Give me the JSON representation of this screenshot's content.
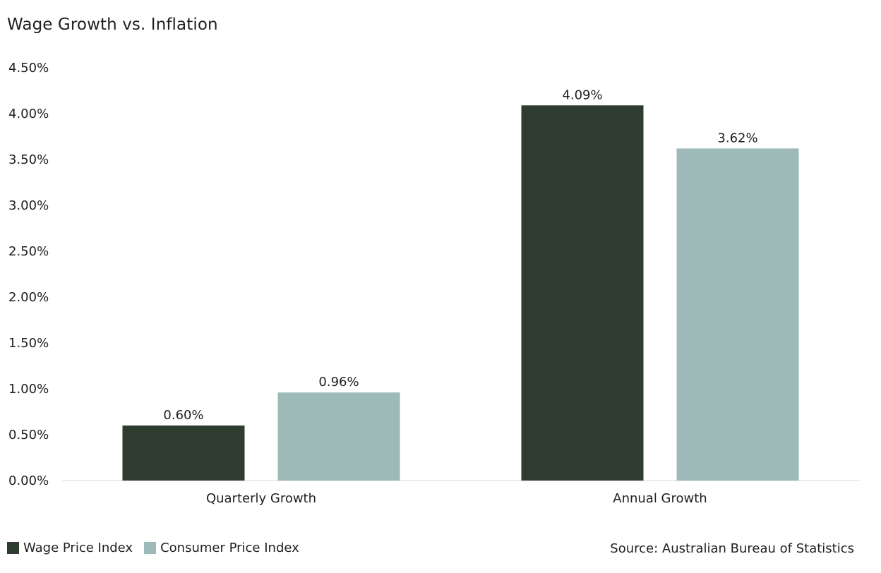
{
  "chart_data": {
    "type": "bar",
    "title": "Wage Growth vs. Inflation",
    "categories": [
      "Quarterly Growth",
      "Annual Growth"
    ],
    "series": [
      {
        "name": "Wage Price Index",
        "values": [
          0.6,
          4.09
        ],
        "labels": [
          "0.60%",
          "4.09%"
        ],
        "color": "#2e3d30"
      },
      {
        "name": "Consumer Price Index",
        "values": [
          0.96,
          3.62
        ],
        "labels": [
          "0.96%",
          "3.62%"
        ],
        "color": "#9db9b8"
      }
    ],
    "ylim": [
      0,
      4.5
    ],
    "yticks": [
      "0.00%",
      "0.50%",
      "1.00%",
      "1.50%",
      "2.00%",
      "2.50%",
      "3.00%",
      "3.50%",
      "4.00%",
      "4.50%"
    ],
    "grid": false,
    "legend": "bottom-left",
    "source": "Source: Australian Bureau of Statistics"
  }
}
